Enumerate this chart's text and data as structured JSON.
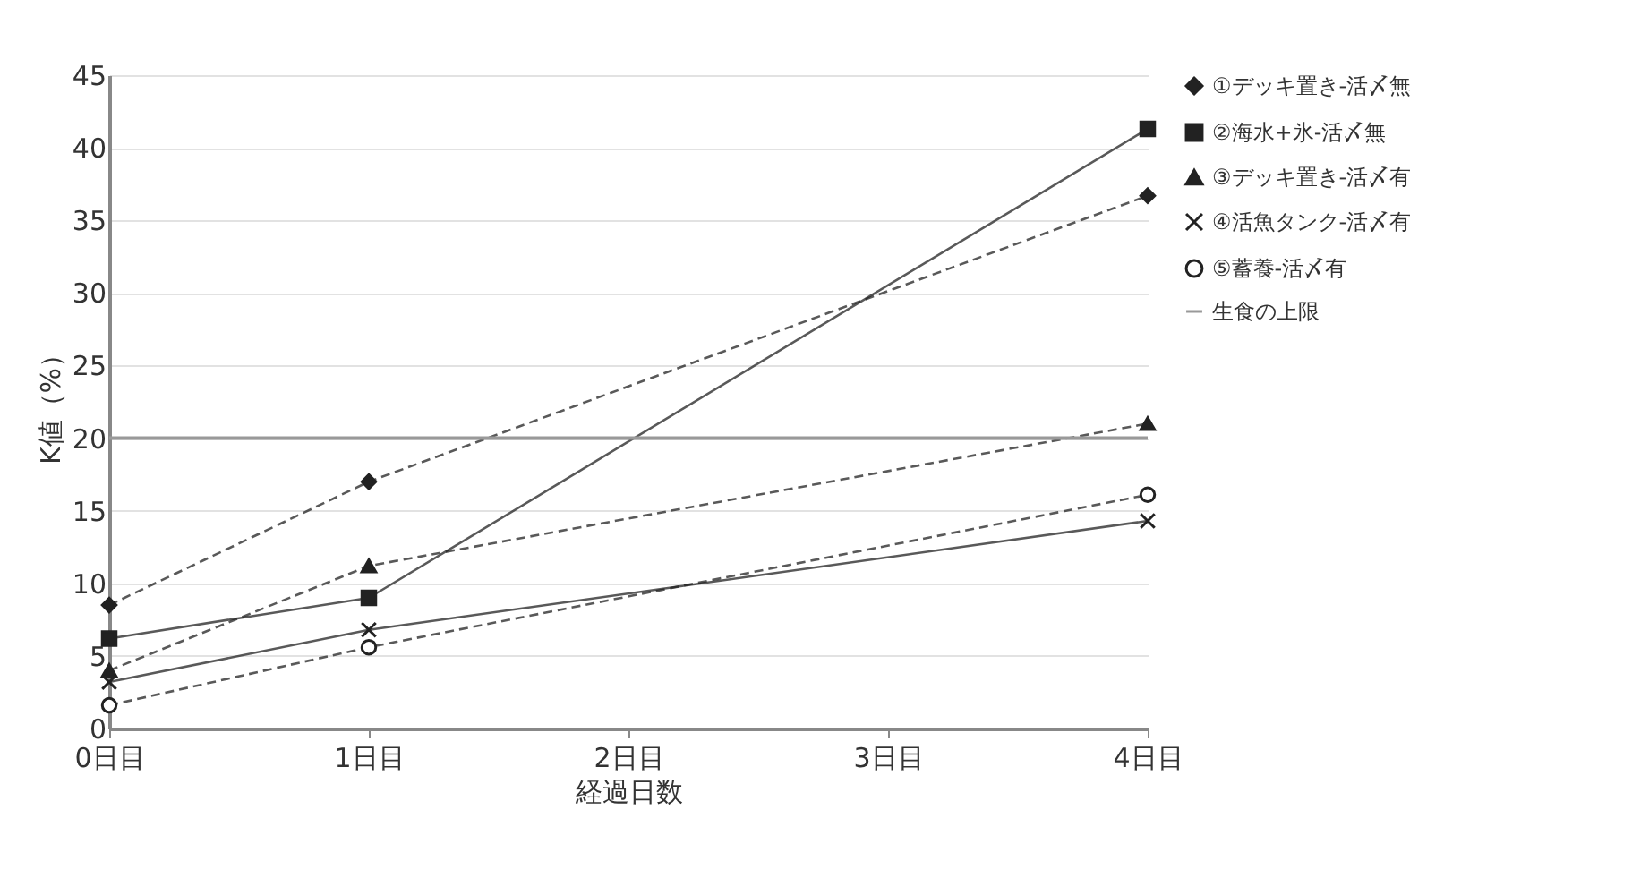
{
  "chart_data": {
    "type": "line",
    "xlabel": "経過日数",
    "ylabel": "K値（%）",
    "categories": [
      "0日目",
      "1日目",
      "2日目",
      "3日目",
      "4日目"
    ],
    "series": [
      {
        "name": "①デッキ置き-活〆無",
        "color": "#222222",
        "marker": "diamond",
        "line_style": "dashed",
        "values": [
          8.5,
          17.0,
          null,
          null,
          36.7
        ]
      },
      {
        "name": "②海水+氷-活〆無",
        "color": "#222222",
        "marker": "square",
        "line_style": "solid",
        "values": [
          6.2,
          9.0,
          null,
          null,
          41.3
        ]
      },
      {
        "name": "③デッキ置き-活〆有",
        "color": "#222222",
        "marker": "triangle",
        "line_style": "dashed",
        "values": [
          4.0,
          11.2,
          null,
          null,
          21.0
        ]
      },
      {
        "name": "④活魚タンク-活〆有",
        "color": "#222222",
        "marker": "cross",
        "line_style": "solid",
        "values": [
          3.2,
          6.8,
          null,
          null,
          14.3
        ]
      },
      {
        "name": "⑤蓄養-活〆有",
        "color": "#222222",
        "marker": "circle",
        "line_style": "dashed",
        "values": [
          1.6,
          5.6,
          null,
          null,
          16.1
        ]
      }
    ],
    "ref_lines": [
      {
        "axis": "y",
        "value": 20,
        "label": "生食の上限",
        "color": "#999999",
        "line_style": "solid"
      }
    ],
    "ylim": [
      0,
      45
    ],
    "yticks": [
      0,
      5,
      10,
      15,
      20,
      25,
      30,
      35,
      40,
      45
    ],
    "grid": "y",
    "legend": "right"
  }
}
